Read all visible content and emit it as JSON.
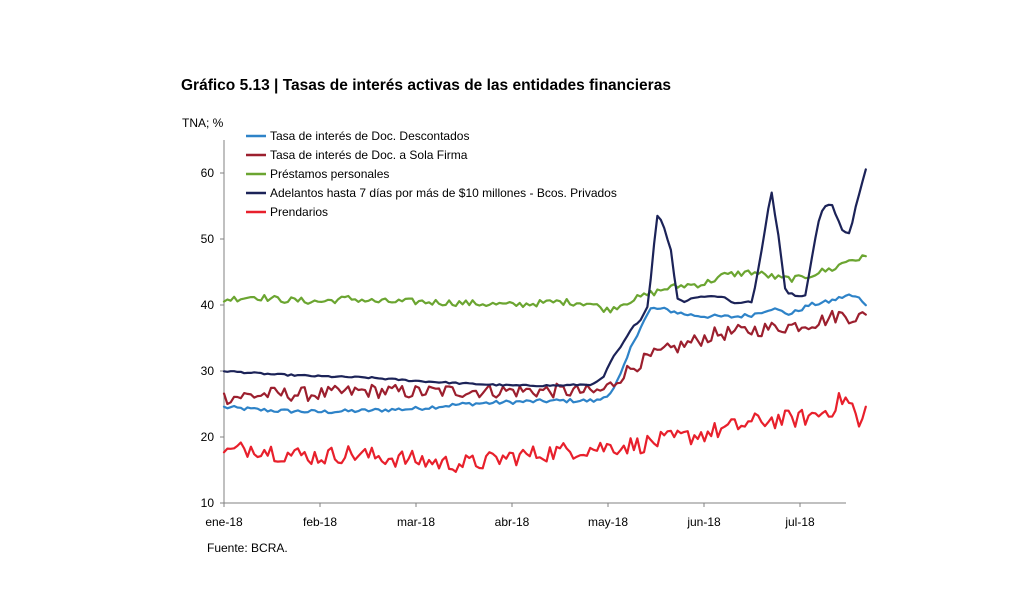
{
  "chart_data": {
    "type": "line",
    "title": "Gráfico 5.13 | Tasas de interés activas de las entidades financieras",
    "unit_label": "TNA; %",
    "source": "Fuente: BCRA.",
    "ylim": [
      10,
      65
    ],
    "y_ticks": [
      10,
      20,
      30,
      40,
      50,
      60
    ],
    "x_range": [
      0,
      6.7
    ],
    "x_ticks": [
      {
        "label": "ene-18",
        "pos": 0
      },
      {
        "label": "feb-18",
        "pos": 1
      },
      {
        "label": "mar-18",
        "pos": 2
      },
      {
        "label": "abr-18",
        "pos": 3
      },
      {
        "label": "may-18",
        "pos": 4
      },
      {
        "label": "jun-18",
        "pos": 5
      },
      {
        "label": "jul-18",
        "pos": 6
      }
    ],
    "grid": false,
    "legend_position": "top-left",
    "series": [
      {
        "name": "Tasa de interés de Doc. Descontados",
        "color": "#2e83c8",
        "noise": 0.3,
        "points": [
          [
            0,
            24.5
          ],
          [
            0.5,
            24
          ],
          [
            1,
            23.8
          ],
          [
            1.5,
            24
          ],
          [
            2,
            24.3
          ],
          [
            2.5,
            25
          ],
          [
            3,
            25.3
          ],
          [
            3.5,
            25.5
          ],
          [
            3.9,
            25.5
          ],
          [
            4.05,
            27
          ],
          [
            4.15,
            30
          ],
          [
            4.25,
            34
          ],
          [
            4.35,
            37
          ],
          [
            4.45,
            39.5
          ],
          [
            4.6,
            39.3
          ],
          [
            4.8,
            38.6
          ],
          [
            5,
            38.3
          ],
          [
            5.3,
            38.2
          ],
          [
            5.5,
            38.5
          ],
          [
            5.7,
            39.5
          ],
          [
            5.9,
            38.6
          ],
          [
            6.1,
            40
          ],
          [
            6.3,
            40.5
          ],
          [
            6.5,
            41.5
          ],
          [
            6.62,
            41
          ],
          [
            6.7,
            40
          ]
        ]
      },
      {
        "name": "Tasa de interés de Doc. a Sola Firma",
        "color": "#9c1f2e",
        "noise": 1.1,
        "points": [
          [
            0,
            26
          ],
          [
            0.5,
            26.5
          ],
          [
            1,
            26.5
          ],
          [
            1.5,
            27
          ],
          [
            2,
            26.8
          ],
          [
            2.5,
            27
          ],
          [
            3,
            27
          ],
          [
            3.5,
            27
          ],
          [
            3.9,
            26.8
          ],
          [
            4.05,
            28
          ],
          [
            4.15,
            29.5
          ],
          [
            4.3,
            31
          ],
          [
            4.5,
            32.5
          ],
          [
            4.7,
            33.5
          ],
          [
            4.9,
            34.5
          ],
          [
            5.1,
            35.5
          ],
          [
            5.4,
            36
          ],
          [
            5.7,
            36.5
          ],
          [
            6,
            37
          ],
          [
            6.2,
            37.5
          ],
          [
            6.4,
            38.5
          ],
          [
            6.55,
            38.2
          ],
          [
            6.7,
            38.2
          ]
        ]
      },
      {
        "name": "Préstamos personales",
        "color": "#6ba531",
        "noise": 0.5,
        "points": [
          [
            0,
            40.8
          ],
          [
            0.3,
            41.3
          ],
          [
            0.6,
            40.8
          ],
          [
            1,
            40.5
          ],
          [
            1.3,
            41
          ],
          [
            1.6,
            40.5
          ],
          [
            2,
            40.5
          ],
          [
            2.5,
            40.3
          ],
          [
            3,
            40
          ],
          [
            3.5,
            40.5
          ],
          [
            3.8,
            40.3
          ],
          [
            4,
            39.2
          ],
          [
            4.2,
            40.5
          ],
          [
            4.4,
            41.5
          ],
          [
            4.6,
            42.5
          ],
          [
            4.8,
            43
          ],
          [
            5,
            43.2
          ],
          [
            5.2,
            44.5
          ],
          [
            5.5,
            45
          ],
          [
            5.8,
            44
          ],
          [
            6,
            44
          ],
          [
            6.2,
            45
          ],
          [
            6.35,
            45.5
          ],
          [
            6.5,
            46.8
          ],
          [
            6.7,
            47.2
          ]
        ]
      },
      {
        "name": "Adelantos hasta 7 días por más de $10 millones - Bcos. Privados",
        "color": "#1c2358",
        "noise": 0.12,
        "points": [
          [
            0,
            30
          ],
          [
            0.5,
            29.5
          ],
          [
            1,
            29.2
          ],
          [
            1.5,
            29
          ],
          [
            2,
            28.5
          ],
          [
            2.5,
            28.1
          ],
          [
            3,
            27.8
          ],
          [
            3.5,
            27.8
          ],
          [
            3.85,
            28
          ],
          [
            3.95,
            29
          ],
          [
            4.05,
            32
          ],
          [
            4.15,
            34
          ],
          [
            4.25,
            36.5
          ],
          [
            4.35,
            38
          ],
          [
            4.42,
            40
          ],
          [
            4.47,
            48
          ],
          [
            4.52,
            54.2
          ],
          [
            4.6,
            51
          ],
          [
            4.66,
            48
          ],
          [
            4.72,
            41
          ],
          [
            4.8,
            40.5
          ],
          [
            4.9,
            41.2
          ],
          [
            5,
            41.3
          ],
          [
            5.2,
            41.3
          ],
          [
            5.3,
            40.3
          ],
          [
            5.5,
            40.5
          ],
          [
            5.55,
            44
          ],
          [
            5.62,
            50
          ],
          [
            5.7,
            57.5
          ],
          [
            5.78,
            50
          ],
          [
            5.85,
            42
          ],
          [
            5.95,
            41.5
          ],
          [
            6.05,
            41.2
          ],
          [
            6.1,
            45
          ],
          [
            6.18,
            52
          ],
          [
            6.25,
            55
          ],
          [
            6.33,
            55.3
          ],
          [
            6.45,
            51
          ],
          [
            6.52,
            50.8
          ],
          [
            6.58,
            55
          ],
          [
            6.64,
            58
          ],
          [
            6.7,
            61.5
          ]
        ]
      },
      {
        "name": "Prendarios",
        "color": "#e8202c",
        "noise": 1.4,
        "points": [
          [
            0,
            17.5
          ],
          [
            0.3,
            18.5
          ],
          [
            0.6,
            17.5
          ],
          [
            1,
            17
          ],
          [
            1.3,
            17.5
          ],
          [
            1.6,
            17
          ],
          [
            2,
            16.5
          ],
          [
            2.3,
            16
          ],
          [
            2.6,
            16
          ],
          [
            3,
            17
          ],
          [
            3.3,
            17.5
          ],
          [
            3.6,
            18
          ],
          [
            4,
            18.5
          ],
          [
            4.3,
            18.8
          ],
          [
            4.6,
            19.5
          ],
          [
            5,
            20.5
          ],
          [
            5.3,
            21.5
          ],
          [
            5.6,
            22.5
          ],
          [
            6,
            22.8
          ],
          [
            6.2,
            23.5
          ],
          [
            6.35,
            24.5
          ],
          [
            6.45,
            26
          ],
          [
            6.55,
            24.5
          ],
          [
            6.63,
            21
          ],
          [
            6.7,
            25
          ]
        ]
      }
    ]
  }
}
